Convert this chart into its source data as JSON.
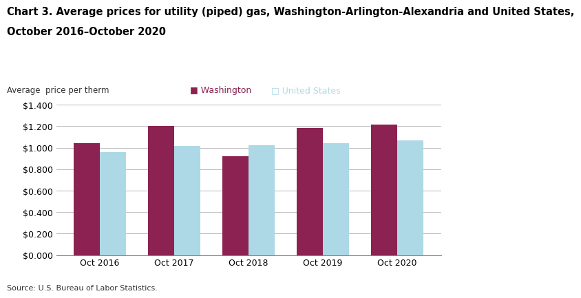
{
  "title_line1": "Chart 3. Average prices for utility (piped) gas, Washington-Arlington-Alexandria and United States,",
  "title_line2": "October 2016–October 2020",
  "ylabel": "Average  price per therm",
  "source": "Source: U.S. Bureau of Labor Statistics.",
  "categories": [
    "Oct 2016",
    "Oct 2017",
    "Oct 2018",
    "Oct 2019",
    "Oct 2020"
  ],
  "washington_values": [
    1.04,
    1.205,
    0.92,
    1.185,
    1.215
  ],
  "us_values": [
    0.96,
    1.015,
    1.02,
    1.04,
    1.065
  ],
  "washington_color": "#8B2252",
  "us_color": "#ADD8E6",
  "ylim": [
    0,
    1.4
  ],
  "ytick_step": 0.2,
  "legend_washington": "Washington",
  "legend_us": "United States",
  "bar_width": 0.35,
  "title_fontsize": 10.5,
  "axis_label_fontsize": 8.5,
  "tick_fontsize": 9,
  "legend_fontsize": 9,
  "source_fontsize": 8,
  "background_color": "#ffffff",
  "grid_color": "#c0c0c0"
}
